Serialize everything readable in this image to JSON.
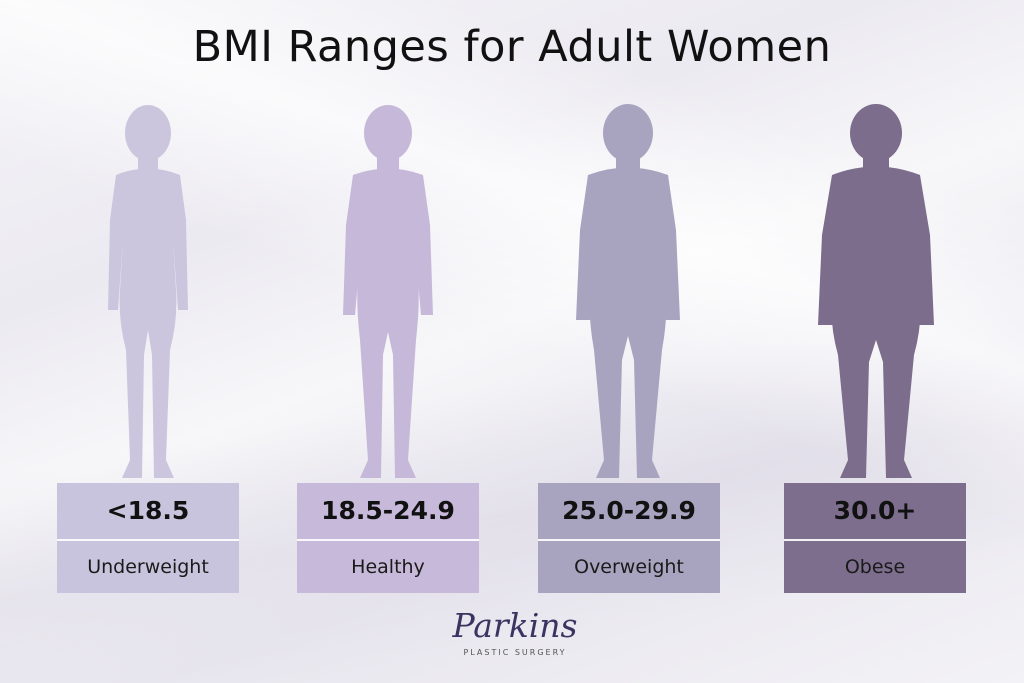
{
  "title": "BMI Ranges for Adult Women",
  "categories": [
    {
      "range": "<18.5",
      "label": "Underweight",
      "color": "#c9c4dd",
      "figure_color": "#cbc6de"
    },
    {
      "range": "18.5-24.9",
      "label": "Healthy",
      "color": "#c7b9d9",
      "figure_color": "#c6b8d9"
    },
    {
      "range": "25.0-29.9",
      "label": "Overweight",
      "color": "#a8a4c0",
      "figure_color": "#a8a4c0"
    },
    {
      "range": "30.0+",
      "label": "Obese",
      "color": "#7c6e8c",
      "figure_color": "#7b6d8b"
    }
  ],
  "logo": {
    "script": "Parkins",
    "subtitle": "PLASTIC SURGERY"
  }
}
